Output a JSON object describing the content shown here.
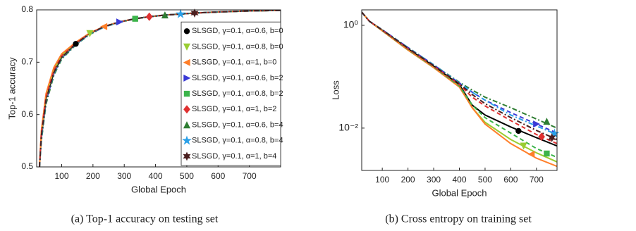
{
  "chart_data": [
    {
      "type": "line",
      "xlabel": "Global Epoch",
      "ylabel": "Top-1 accuracy",
      "caption": "(a) Top-1 accuracy on testing set",
      "xlim": [
        20,
        800
      ],
      "ylim": [
        0.5,
        0.8
      ],
      "xticks": [
        100,
        200,
        300,
        400,
        500,
        600,
        700
      ],
      "yticks": [
        0.5,
        0.6,
        0.7,
        0.8
      ],
      "legend": "lower right",
      "series": [
        {
          "name": "SLSGD, γ=0.1, α=0.6, b=0",
          "color": "#000000",
          "linestyle": "solid",
          "marker": "o",
          "x": [
            29,
            35,
            50,
            75,
            100,
            145,
            190,
            235,
            285,
            335,
            380,
            430,
            480,
            525,
            600,
            700,
            800
          ],
          "values": [
            0.5,
            0.56,
            0.63,
            0.68,
            0.71,
            0.735,
            0.755,
            0.768,
            0.777,
            0.783,
            0.787,
            0.79,
            0.792,
            0.794,
            0.796,
            0.798,
            0.799
          ],
          "marker_point": {
            "x": 145,
            "value": 0.735
          }
        },
        {
          "name": "SLSGD, γ=0.1, α=0.8, b=0",
          "color": "#9acd32",
          "linestyle": "solid",
          "marker": "v",
          "x": [
            29,
            35,
            50,
            75,
            100,
            145,
            190,
            235,
            285,
            335,
            380,
            430,
            480,
            525,
            600,
            700,
            800
          ],
          "values": [
            0.5,
            0.565,
            0.635,
            0.685,
            0.713,
            0.737,
            0.755,
            0.768,
            0.777,
            0.783,
            0.787,
            0.79,
            0.792,
            0.794,
            0.796,
            0.798,
            0.799
          ],
          "marker_point": {
            "x": 190,
            "value": 0.755
          }
        },
        {
          "name": "SLSGD, γ=0.1, α=1, b=0",
          "color": "#ff7f2a",
          "linestyle": "solid",
          "marker": "<",
          "x": [
            29,
            35,
            50,
            75,
            100,
            145,
            190,
            235,
            285,
            335,
            380,
            430,
            480,
            525,
            600,
            700,
            800
          ],
          "values": [
            0.5,
            0.57,
            0.64,
            0.69,
            0.716,
            0.738,
            0.756,
            0.768,
            0.777,
            0.783,
            0.787,
            0.79,
            0.792,
            0.794,
            0.796,
            0.798,
            0.799
          ],
          "marker_point": {
            "x": 235,
            "value": 0.768
          }
        },
        {
          "name": "SLSGD, γ=0.1, α=0.6, b=2",
          "color": "#3a3ad6",
          "linestyle": "dashed",
          "marker": ">",
          "x": [
            29,
            35,
            50,
            75,
            100,
            145,
            190,
            235,
            285,
            335,
            380,
            430,
            480,
            525,
            600,
            700,
            800
          ],
          "values": [
            0.5,
            0.555,
            0.625,
            0.678,
            0.708,
            0.734,
            0.754,
            0.767,
            0.777,
            0.783,
            0.787,
            0.79,
            0.792,
            0.794,
            0.796,
            0.798,
            0.799
          ],
          "marker_point": {
            "x": 285,
            "value": 0.777
          }
        },
        {
          "name": "SLSGD, γ=0.1, α=0.8, b=2",
          "color": "#3cb44b",
          "linestyle": "dashed",
          "marker": "s",
          "x": [
            29,
            35,
            50,
            75,
            100,
            145,
            190,
            235,
            285,
            335,
            380,
            430,
            480,
            525,
            600,
            700,
            800
          ],
          "values": [
            0.5,
            0.56,
            0.63,
            0.682,
            0.71,
            0.735,
            0.755,
            0.768,
            0.777,
            0.783,
            0.787,
            0.79,
            0.792,
            0.794,
            0.796,
            0.798,
            0.799
          ],
          "marker_point": {
            "x": 335,
            "value": 0.783
          }
        },
        {
          "name": "SLSGD, γ=0.1, α=1, b=2",
          "color": "#e03030",
          "linestyle": "dashed",
          "marker": "d",
          "x": [
            29,
            35,
            50,
            75,
            100,
            145,
            190,
            235,
            285,
            335,
            380,
            430,
            480,
            525,
            600,
            700,
            800
          ],
          "values": [
            0.5,
            0.565,
            0.633,
            0.684,
            0.712,
            0.736,
            0.755,
            0.768,
            0.777,
            0.783,
            0.787,
            0.79,
            0.792,
            0.794,
            0.796,
            0.798,
            0.799
          ],
          "marker_point": {
            "x": 380,
            "value": 0.787
          }
        },
        {
          "name": "SLSGD, γ=0.1, α=0.6, b=4",
          "color": "#2e7d32",
          "linestyle": "dashdot",
          "marker": "^",
          "x": [
            29,
            35,
            50,
            75,
            100,
            145,
            190,
            235,
            285,
            335,
            380,
            430,
            480,
            525,
            600,
            700,
            800
          ],
          "values": [
            0.5,
            0.55,
            0.62,
            0.675,
            0.706,
            0.733,
            0.753,
            0.767,
            0.776,
            0.783,
            0.787,
            0.79,
            0.792,
            0.794,
            0.796,
            0.798,
            0.799
          ],
          "marker_point": {
            "x": 430,
            "value": 0.79
          }
        },
        {
          "name": "SLSGD, γ=0.1, α=0.8, b=4",
          "color": "#2aa0e8",
          "linestyle": "dashdot",
          "marker": "*",
          "x": [
            29,
            35,
            50,
            75,
            100,
            145,
            190,
            235,
            285,
            335,
            380,
            430,
            480,
            525,
            600,
            700,
            800
          ],
          "values": [
            0.5,
            0.555,
            0.625,
            0.678,
            0.708,
            0.734,
            0.754,
            0.767,
            0.777,
            0.783,
            0.787,
            0.79,
            0.792,
            0.794,
            0.796,
            0.798,
            0.799
          ],
          "marker_point": {
            "x": 480,
            "value": 0.792
          }
        },
        {
          "name": "SLSGD, γ=0.1, α=1, b=4",
          "color": "#4a1f1f",
          "linestyle": "dashdot",
          "marker": "h",
          "x": [
            29,
            35,
            50,
            75,
            100,
            145,
            190,
            235,
            285,
            335,
            380,
            430,
            480,
            525,
            600,
            700,
            800
          ],
          "values": [
            0.5,
            0.56,
            0.628,
            0.68,
            0.709,
            0.735,
            0.755,
            0.768,
            0.777,
            0.783,
            0.787,
            0.79,
            0.792,
            0.794,
            0.796,
            0.798,
            0.799
          ],
          "marker_point": {
            "x": 525,
            "value": 0.794
          }
        }
      ]
    },
    {
      "type": "line",
      "xlabel": "Global Epoch",
      "ylabel": "Loss",
      "caption": "(b) Cross entropy on training set",
      "xlim": [
        20,
        780
      ],
      "ylim": [
        0.0015,
        2.0
      ],
      "yscale": "log",
      "xticks": [
        100,
        200,
        300,
        400,
        500,
        600,
        700
      ],
      "yticks": [
        {
          "value": 0.01,
          "label": "10⁻²"
        },
        {
          "value": 1,
          "label": "10⁰"
        }
      ],
      "series": [
        {
          "color": "#000000",
          "linestyle": "solid",
          "marker": "o",
          "x": [
            20,
            50,
            100,
            200,
            300,
            400,
            450,
            500,
            600,
            700,
            780
          ],
          "values": [
            1.8,
            1.2,
            0.8,
            0.35,
            0.16,
            0.07,
            0.028,
            0.018,
            0.0105,
            0.0065,
            0.0045
          ],
          "marker_point": {
            "x": 630,
            "value": 0.0088
          }
        },
        {
          "color": "#9acd32",
          "linestyle": "solid",
          "marker": "v",
          "x": [
            20,
            50,
            100,
            200,
            300,
            400,
            450,
            500,
            600,
            700,
            780
          ],
          "values": [
            1.8,
            1.2,
            0.78,
            0.33,
            0.15,
            0.065,
            0.025,
            0.013,
            0.006,
            0.0033,
            0.0022
          ],
          "marker_point": {
            "x": 650,
            "value": 0.0045
          }
        },
        {
          "color": "#ff7f2a",
          "linestyle": "solid",
          "marker": "<",
          "x": [
            20,
            50,
            100,
            200,
            300,
            400,
            450,
            500,
            600,
            700,
            780
          ],
          "values": [
            1.8,
            1.2,
            0.78,
            0.33,
            0.15,
            0.063,
            0.025,
            0.012,
            0.005,
            0.0026,
            0.0018
          ],
          "marker_point": {
            "x": 680,
            "value": 0.0031
          }
        },
        {
          "color": "#3a3ad6",
          "linestyle": "dashed",
          "marker": ">",
          "x": [
            20,
            50,
            100,
            200,
            300,
            400,
            450,
            500,
            600,
            700,
            780
          ],
          "values": [
            1.8,
            1.2,
            0.82,
            0.37,
            0.17,
            0.075,
            0.05,
            0.035,
            0.02,
            0.012,
            0.008
          ],
          "marker_point": {
            "x": 700,
            "value": 0.012
          }
        },
        {
          "color": "#3cb44b",
          "linestyle": "dashed",
          "marker": "s",
          "x": [
            20,
            50,
            100,
            200,
            300,
            400,
            450,
            500,
            600,
            700,
            780
          ],
          "values": [
            1.8,
            1.2,
            0.79,
            0.34,
            0.155,
            0.066,
            0.028,
            0.016,
            0.008,
            0.004,
            0.0027
          ],
          "marker_point": {
            "x": 740,
            "value": 0.0032
          }
        },
        {
          "color": "#e03030",
          "linestyle": "dashed",
          "marker": "d",
          "x": [
            20,
            50,
            100,
            200,
            300,
            400,
            450,
            500,
            600,
            700,
            780
          ],
          "values": [
            1.8,
            1.2,
            0.8,
            0.35,
            0.16,
            0.07,
            0.04,
            0.027,
            0.014,
            0.0075,
            0.005
          ],
          "marker_point": {
            "x": 720,
            "value": 0.0068
          }
        },
        {
          "color": "#2e7d32",
          "linestyle": "dashdot",
          "marker": "^",
          "x": [
            20,
            50,
            100,
            200,
            300,
            400,
            450,
            500,
            600,
            700,
            780
          ],
          "values": [
            1.8,
            1.2,
            0.82,
            0.37,
            0.17,
            0.078,
            0.055,
            0.04,
            0.025,
            0.015,
            0.01
          ],
          "marker_point": {
            "x": 740,
            "value": 0.0135
          }
        },
        {
          "color": "#2aa0e8",
          "linestyle": "dashdot",
          "marker": "*",
          "x": [
            20,
            50,
            100,
            200,
            300,
            400,
            450,
            500,
            600,
            700,
            780
          ],
          "values": [
            1.8,
            1.2,
            0.82,
            0.37,
            0.17,
            0.076,
            0.05,
            0.035,
            0.018,
            0.011,
            0.0075
          ],
          "marker_point": {
            "x": 770,
            "value": 0.0078
          }
        },
        {
          "color": "#4a1f1f",
          "linestyle": "dashdot",
          "marker": "h",
          "x": [
            20,
            50,
            100,
            200,
            300,
            400,
            450,
            500,
            600,
            700,
            780
          ],
          "values": [
            1.8,
            1.2,
            0.81,
            0.36,
            0.165,
            0.073,
            0.045,
            0.03,
            0.016,
            0.009,
            0.006
          ],
          "marker_point": {
            "x": 760,
            "value": 0.0065
          }
        }
      ]
    }
  ]
}
